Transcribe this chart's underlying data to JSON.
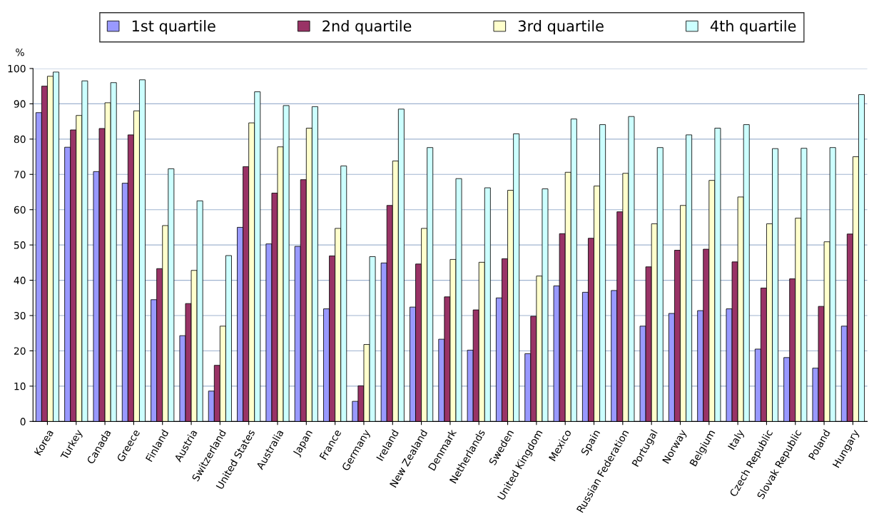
{
  "chart_data": {
    "type": "bar",
    "ylabel": "%",
    "categories": [
      "Korea",
      "Turkey",
      "Canada",
      "Greece",
      "Finland",
      "Austria",
      "Switzerland",
      "United States",
      "Australia",
      "Japan",
      "France",
      "Germany",
      "Ireland",
      "New Zealand",
      "Denmark",
      "Netherlands",
      "Sweden",
      "United Kingdom",
      "Mexico",
      "Spain",
      "Russian Federation",
      "Portugal",
      "Norway",
      "Belgium",
      "Italy",
      "Czech Republic",
      "Slovak Republic",
      "Poland",
      "Hungary"
    ],
    "series": [
      {
        "name": "1st quartile",
        "color": "#9999ff",
        "values": [
          87.5,
          77.7,
          70.8,
          67.5,
          34.5,
          24.3,
          8.6,
          55,
          50.3,
          49.6,
          31.9,
          5.7,
          44.9,
          32.4,
          23.3,
          20.2,
          35,
          19.2,
          38.4,
          36.6,
          37.1,
          27,
          30.6,
          31.4,
          31.9,
          20.5,
          18.1,
          15.1,
          27
        ]
      },
      {
        "name": "2nd quartile",
        "color": "#993366",
        "values": [
          95,
          82.6,
          83,
          81.2,
          43.3,
          33.4,
          15.9,
          72.2,
          64.7,
          68.5,
          46.9,
          10.1,
          61.2,
          44.6,
          35.3,
          31.6,
          46.1,
          29.8,
          53.2,
          51.9,
          59.4,
          43.8,
          48.5,
          48.8,
          45.2,
          37.8,
          40.4,
          32.6,
          53.1
        ]
      },
      {
        "name": "3rd quartile",
        "color": "#ffffcc",
        "values": [
          97.8,
          86.7,
          90.3,
          88,
          55.5,
          42.8,
          27,
          84.6,
          77.8,
          83.1,
          54.7,
          21.8,
          73.8,
          54.7,
          45.9,
          45.1,
          65.5,
          41.2,
          70.6,
          66.7,
          70.3,
          56,
          61.2,
          68.3,
          63.6,
          56,
          57.6,
          50.9,
          75
        ]
      },
      {
        "name": "4th quartile",
        "color": "#ccffff",
        "values": [
          99,
          96.5,
          96,
          96.8,
          71.6,
          62.5,
          47,
          93.4,
          89.5,
          89.2,
          72.4,
          46.7,
          88.5,
          77.6,
          68.8,
          66.2,
          81.5,
          65.9,
          85.7,
          84.1,
          86.4,
          77.6,
          81.2,
          83.1,
          84.1,
          77.3,
          77.4,
          77.6,
          92.6
        ]
      }
    ],
    "ylim": [
      0,
      100
    ],
    "yticks": [
      0,
      10,
      20,
      30,
      40,
      50,
      60,
      70,
      80,
      90,
      100
    ],
    "grid": "y",
    "legend": "top"
  }
}
